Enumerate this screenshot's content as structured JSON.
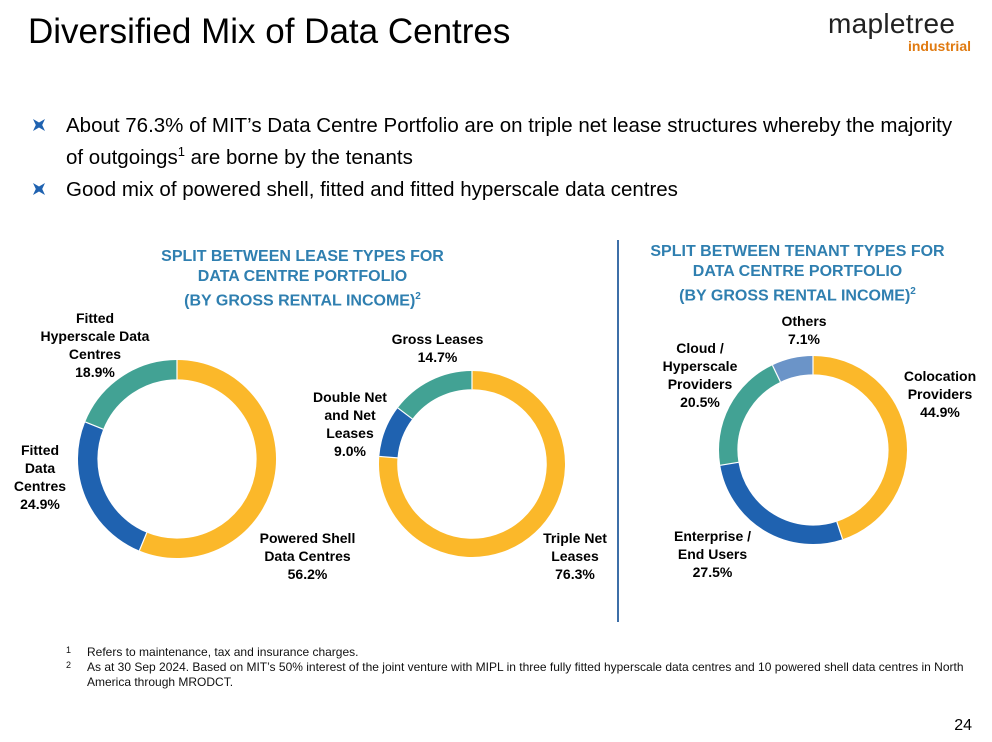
{
  "title": "Diversified Mix of Data Centres",
  "logo": {
    "line1": "mapletree",
    "line2": "industrial"
  },
  "bullets": [
    {
      "text_before": "About 76.3% of MIT’s Data Centre Portfolio are on triple net lease structures whereby the majority of outgoings",
      "sup": "1",
      "text_after": " are borne by the tenants"
    },
    {
      "text": "Good mix of powered shell, fitted and fitted hyperscale data centres"
    }
  ],
  "colors": {
    "yellow": "#fbb82a",
    "blue": "#1f62b0",
    "teal": "#42a294",
    "lightblue": "#6b94c8",
    "title_blue": "#2f7fb0"
  },
  "chart_data": [
    {
      "type": "pie",
      "variant": "donut",
      "title_lines": [
        "SPLIT BETWEEN LEASE TYPES FOR",
        "DATA CENTRE PORTFOLIO",
        "(BY GROSS RENTAL INCOME)"
      ],
      "title_sup": "2",
      "slices": [
        {
          "name": "Powered Shell Data Centres",
          "label_lines": [
            "Powered Shell",
            "Data Centres"
          ],
          "value": 56.2,
          "value_label": "56.2%",
          "color": "#fbb82a"
        },
        {
          "name": "Fitted Data Centres",
          "label_lines": [
            "Fitted",
            "Data",
            "Centres"
          ],
          "value": 24.9,
          "value_label": "24.9%",
          "color": "#1f62b0"
        },
        {
          "name": "Fitted Hyperscale Data Centres",
          "label_lines": [
            "Fitted",
            "Hyperscale Data",
            "Centres"
          ],
          "value": 18.9,
          "value_label": "18.9%",
          "color": "#42a294"
        }
      ]
    },
    {
      "type": "pie",
      "variant": "donut",
      "slices": [
        {
          "name": "Triple Net Leases",
          "label_lines": [
            "Triple Net",
            "Leases"
          ],
          "value": 76.3,
          "value_label": "76.3%",
          "color": "#fbb82a"
        },
        {
          "name": "Double Net and Net Leases",
          "label_lines": [
            "Double Net",
            "and Net",
            "Leases"
          ],
          "value": 9.0,
          "value_label": "9.0%",
          "color": "#1f62b0"
        },
        {
          "name": "Gross Leases",
          "label_lines": [
            "Gross Leases"
          ],
          "value": 14.7,
          "value_label": "14.7%",
          "color": "#42a294"
        }
      ]
    },
    {
      "type": "pie",
      "variant": "donut",
      "title_lines": [
        "SPLIT BETWEEN TENANT TYPES FOR",
        "DATA CENTRE PORTFOLIO",
        "(BY GROSS RENTAL INCOME)"
      ],
      "title_sup": "2",
      "slices": [
        {
          "name": "Colocation Providers",
          "label_lines": [
            "Colocation",
            "Providers"
          ],
          "value": 44.9,
          "value_label": "44.9%",
          "color": "#fbb82a"
        },
        {
          "name": "Enterprise / End Users",
          "label_lines": [
            "Enterprise /",
            "End Users"
          ],
          "value": 27.5,
          "value_label": "27.5%",
          "color": "#1f62b0"
        },
        {
          "name": "Cloud / Hyperscale Providers",
          "label_lines": [
            "Cloud /",
            "Hyperscale",
            "Providers"
          ],
          "value": 20.5,
          "value_label": "20.5%",
          "color": "#42a294"
        },
        {
          "name": "Others",
          "label_lines": [
            "Others"
          ],
          "value": 7.1,
          "value_label": "7.1%",
          "color": "#6b94c8"
        }
      ]
    }
  ],
  "footnotes": [
    {
      "num": "1",
      "text": "Refers to maintenance, tax and insurance charges."
    },
    {
      "num": "2",
      "text": "As at 30 Sep 2024. Based on MIT’s 50% interest of the joint venture with MIPL in three fully fitted hyperscale data centres and 10 powered shell data centres in North America through MRODCT."
    }
  ],
  "page_number": "24"
}
